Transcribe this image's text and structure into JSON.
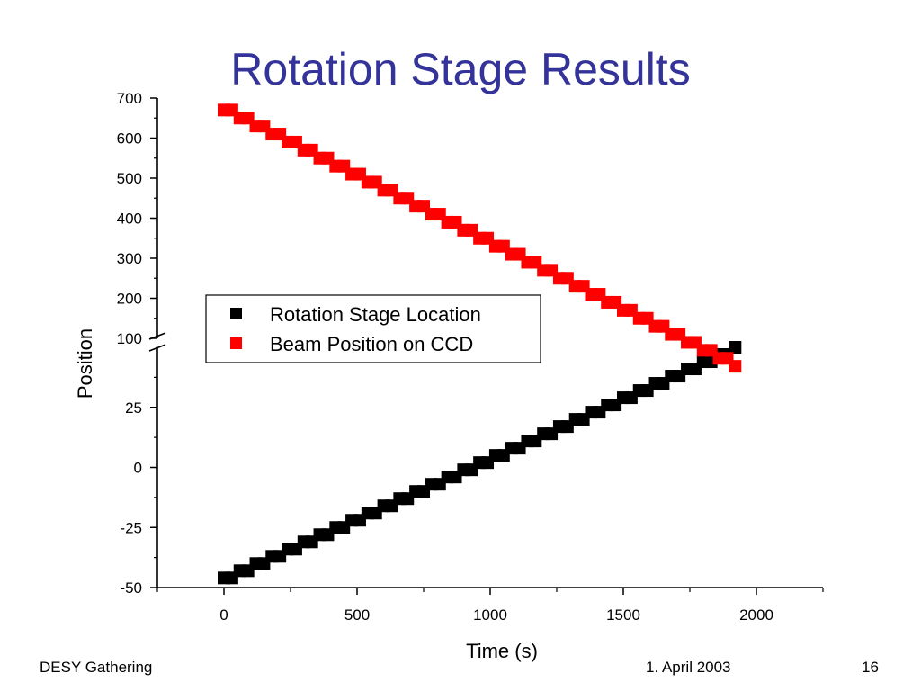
{
  "slide": {
    "title": "Rotation Stage Results",
    "footer_left": "DESY Gathering",
    "footer_center": "1. April 2003",
    "page_number": "16"
  },
  "chart_data": {
    "type": "scatter",
    "xlabel": "Time (s)",
    "ylabel": "Position",
    "xlim": [
      -250,
      2250
    ],
    "x_ticks": [
      0,
      500,
      1000,
      1500,
      2000
    ],
    "broken_y_axis": true,
    "upper_panel": {
      "ylim": [
        100,
        700
      ],
      "y_ticks": [
        100,
        200,
        300,
        400,
        500,
        600,
        700
      ]
    },
    "lower_panel": {
      "ylim": [
        -50,
        50
      ],
      "y_ticks": [
        -50,
        -25,
        0,
        25
      ]
    },
    "grid": false,
    "legend_position": "center",
    "series": [
      {
        "name": "Rotation Stage Location",
        "color": "#000000",
        "marker": "square",
        "panel": "lower",
        "x": [
          0,
          30,
          60,
          90,
          120,
          150,
          180,
          210,
          240,
          270,
          300,
          330,
          360,
          390,
          420,
          450,
          480,
          510,
          540,
          570,
          600,
          630,
          660,
          690,
          720,
          750,
          780,
          810,
          840,
          870,
          900,
          930,
          960,
          990,
          1020,
          1050,
          1080,
          1110,
          1140,
          1170,
          1200,
          1230,
          1260,
          1290,
          1320,
          1350,
          1380,
          1410,
          1440,
          1470,
          1500,
          1530,
          1560,
          1590,
          1620,
          1650,
          1680,
          1710,
          1740,
          1770,
          1800,
          1830,
          1860,
          1890,
          1920
        ],
        "y": [
          -46,
          -46,
          -43,
          -43,
          -40,
          -40,
          -37,
          -37,
          -34,
          -34,
          -31,
          -31,
          -28,
          -28,
          -25,
          -25,
          -22,
          -22,
          -19,
          -19,
          -16,
          -16,
          -13,
          -13,
          -10,
          -10,
          -7,
          -7,
          -4,
          -4,
          -1,
          -1,
          2,
          2,
          5,
          5,
          8,
          8,
          11,
          11,
          14,
          14,
          17,
          17,
          20,
          20,
          23,
          23,
          26,
          26,
          29,
          29,
          32,
          32,
          35,
          35,
          38,
          38,
          41,
          41,
          44,
          44,
          47,
          47,
          50
        ]
      },
      {
        "name": "Beam Position on CCD",
        "color": "#ff0000",
        "marker": "square",
        "panel": "upper",
        "x": [
          0,
          30,
          60,
          90,
          120,
          150,
          180,
          210,
          240,
          270,
          300,
          330,
          360,
          390,
          420,
          450,
          480,
          510,
          540,
          570,
          600,
          630,
          660,
          690,
          720,
          750,
          780,
          810,
          840,
          870,
          900,
          930,
          960,
          990,
          1020,
          1050,
          1080,
          1110,
          1140,
          1170,
          1200,
          1230,
          1260,
          1290,
          1320,
          1350,
          1380,
          1410,
          1440,
          1470,
          1500,
          1530,
          1560,
          1590,
          1620,
          1650,
          1680,
          1710,
          1740,
          1770,
          1800,
          1830,
          1860,
          1890,
          1920
        ],
        "y": [
          670,
          670,
          650,
          650,
          630,
          630,
          610,
          610,
          590,
          590,
          570,
          570,
          550,
          550,
          530,
          530,
          510,
          510,
          490,
          490,
          470,
          470,
          450,
          450,
          430,
          430,
          410,
          410,
          390,
          390,
          370,
          370,
          350,
          350,
          330,
          330,
          310,
          310,
          290,
          290,
          270,
          270,
          250,
          250,
          230,
          230,
          210,
          210,
          190,
          190,
          170,
          170,
          150,
          150,
          130,
          130,
          110,
          110,
          90,
          90,
          70,
          70,
          50,
          50,
          30
        ]
      }
    ]
  }
}
